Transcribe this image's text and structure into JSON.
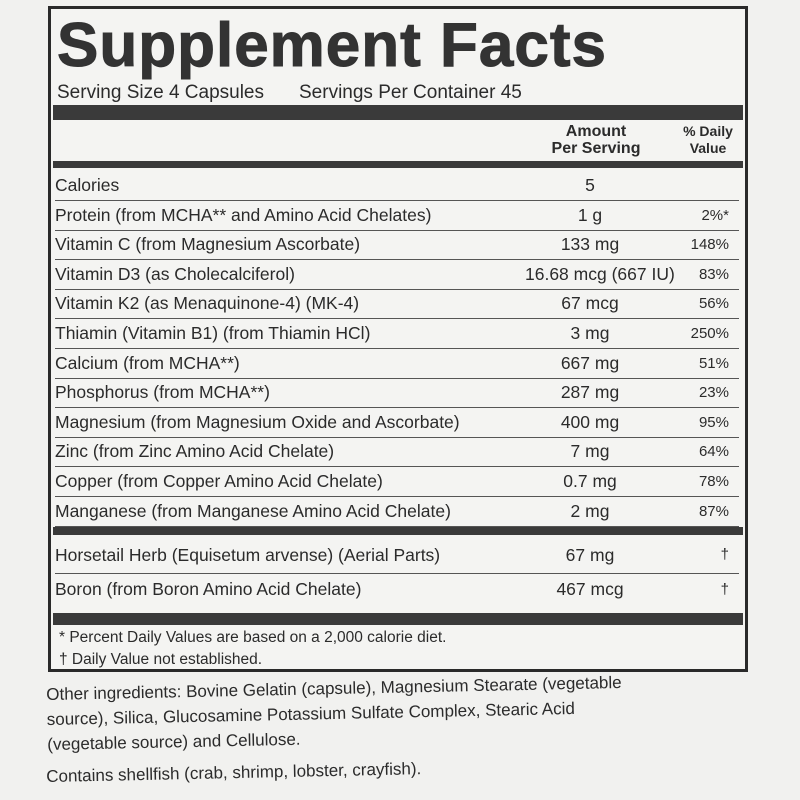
{
  "title": "Supplement Facts",
  "serving_size": "Serving Size 4 Capsules",
  "servings_per_container": "Servings Per Container 45",
  "headers": {
    "amount_line1": "Amount",
    "amount_line2": "Per Serving",
    "dv_line1": "% Daily",
    "dv_line2": "Value"
  },
  "rows": [
    {
      "name": "Calories",
      "amount": "5",
      "dv": ""
    },
    {
      "name": "Protein (from MCHA** and Amino Acid Chelates)",
      "amount": "1 g",
      "dv": "2%*"
    },
    {
      "name": "Vitamin C (from Magnesium Ascorbate)",
      "amount": "133 mg",
      "dv": "148%"
    },
    {
      "name": "Vitamin D3 (as Cholecalciferol)",
      "amount": "16.68 mcg (667 IU)",
      "dv": "83%"
    },
    {
      "name": "Vitamin K2 (as Menaquinone-4) (MK-4)",
      "amount": "67 mcg",
      "dv": "56%"
    },
    {
      "name": "Thiamin (Vitamin B1) (from Thiamin HCl)",
      "amount": "3 mg",
      "dv": "250%"
    },
    {
      "name": "Calcium (from MCHA**)",
      "amount": "667 mg",
      "dv": "51%"
    },
    {
      "name": "Phosphorus (from MCHA**)",
      "amount": "287 mg",
      "dv": "23%"
    },
    {
      "name": "Magnesium (from Magnesium Oxide and Ascorbate)",
      "amount": "400 mg",
      "dv": "95%"
    },
    {
      "name": "Zinc (from Zinc Amino Acid Chelate)",
      "amount": "7 mg",
      "dv": "64%"
    },
    {
      "name": "Copper (from Copper Amino Acid Chelate)",
      "amount": "0.7 mg",
      "dv": "78%"
    },
    {
      "name": "Manganese (from Manganese Amino Acid Chelate)",
      "amount": "2 mg",
      "dv": "87%"
    }
  ],
  "rows2": [
    {
      "name": "Horsetail Herb (Equisetum arvense) (Aerial Parts)",
      "amount": "67 mg",
      "dv": "†"
    },
    {
      "name": "Boron (from Boron Amino Acid Chelate)",
      "amount": "467 mcg",
      "dv": "†"
    }
  ],
  "footnotes": [
    "* Percent Daily Values are based on a 2,000 calorie diet.",
    "† Daily Value not established."
  ],
  "other_ingredients": [
    "Other ingredients: Bovine Gelatin (capsule), Magnesium Stearate (vegetable",
    "source), Silica, Glucosamine Potassium Sulfate Complex, Stearic Acid",
    "(vegetable source) and Cellulose."
  ],
  "allergen": "Contains shellfish (crab, shrimp, lobster, crayfish)."
}
